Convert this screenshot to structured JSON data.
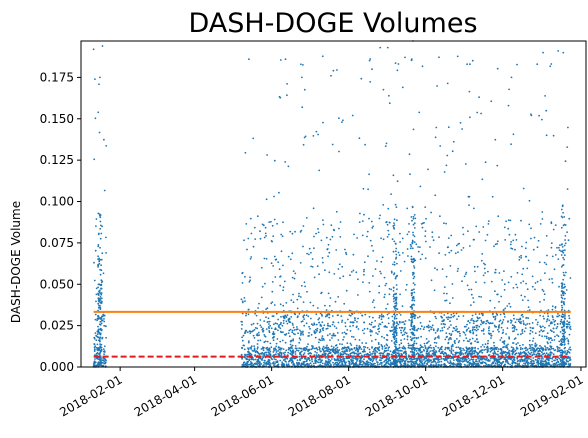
{
  "chart_data": {
    "type": "scatter",
    "title": "DASH-DOGE Volumes",
    "xlabel": "",
    "ylabel": "DASH-DOGE Volume",
    "x_axis_type": "date",
    "xlim": [
      "2018-01-01",
      "2019-02-05"
    ],
    "ylim": [
      0.0,
      0.197
    ],
    "x_ticks": [
      "2018-02-01",
      "2018-04-01",
      "2018-06-01",
      "2018-08-01",
      "2018-10-01",
      "2018-12-01",
      "2019-02-01"
    ],
    "y_ticks": [
      0.0,
      0.025,
      0.05,
      0.075,
      0.1,
      0.125,
      0.15,
      0.175
    ],
    "y_tick_labels": [
      "0.000",
      "0.025",
      "0.050",
      "0.075",
      "0.100",
      "0.125",
      "0.150",
      "0.175"
    ],
    "grid": false,
    "colors": {
      "points": "#1f77b4",
      "mean_line": "#ff7f0e",
      "median_line": "#e41a1c"
    },
    "series": [
      {
        "type": "scatter",
        "color": "#1f77b4",
        "segments": [
          {
            "start": "2018-01-11",
            "end": "2018-01-21",
            "dense_spike_dates": [
              "2018-01-16"
            ]
          },
          {
            "start": "2018-05-08",
            "end": "2019-01-24",
            "dense_spike_dates": [
              "2018-09-07",
              "2018-09-21",
              "2019-01-18"
            ]
          }
        ],
        "notable_points": [
          {
            "x": "2018-01-11",
            "y": 0.192
          },
          {
            "x": "2018-01-12",
            "y": 0.174
          },
          {
            "x": "2018-01-18",
            "y": 0.194
          },
          {
            "x": "2018-01-16",
            "y": 0.175
          },
          {
            "x": "2018-05-14",
            "y": 0.186
          },
          {
            "x": "2018-06-12",
            "y": 0.186
          },
          {
            "x": "2018-06-25",
            "y": 0.175
          },
          {
            "x": "2018-07-18",
            "y": 0.176
          },
          {
            "x": "2018-08-26",
            "y": 0.193
          },
          {
            "x": "2018-09-01",
            "y": 0.193
          },
          {
            "x": "2018-09-21",
            "y": 0.197
          },
          {
            "x": "2018-09-20",
            "y": 0.186
          },
          {
            "x": "2018-11-05",
            "y": 0.183
          },
          {
            "x": "2018-12-08",
            "y": 0.175
          },
          {
            "x": "2019-01-02",
            "y": 0.19
          },
          {
            "x": "2019-01-14",
            "y": 0.191
          },
          {
            "x": "2019-01-18",
            "y": 0.19
          }
        ]
      },
      {
        "type": "hline",
        "y": 0.0333,
        "color": "#ff7f0e",
        "style": "solid"
      },
      {
        "type": "hline",
        "y": 0.0063,
        "color": "#e41a1c",
        "style": "dashed"
      }
    ]
  }
}
